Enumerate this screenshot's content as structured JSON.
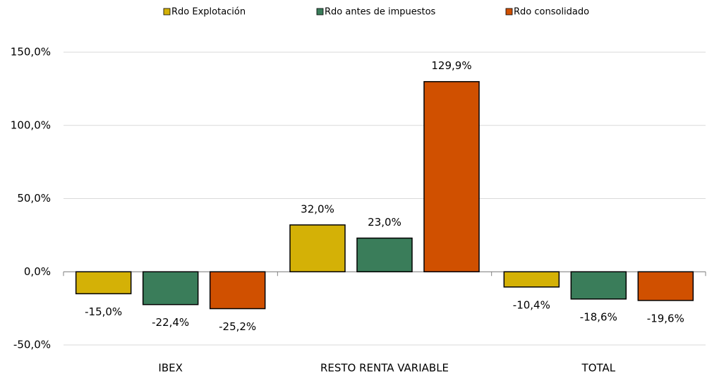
{
  "chart_data": {
    "type": "bar",
    "categories": [
      "IBEX",
      "RESTO RENTA VARIABLE",
      "TOTAL"
    ],
    "series": [
      {
        "name": "Rdo Explotación",
        "color": "#d4b106",
        "values": [
          -15.0,
          32.0,
          -10.4
        ],
        "value_labels": [
          "-15,0%",
          "32,0%",
          "-10,4%"
        ]
      },
      {
        "name": "Rdo antes de impuestos",
        "color": "#3a7d5a",
        "values": [
          -22.4,
          23.0,
          -18.6
        ],
        "value_labels": [
          "-22,4%",
          "23,0%",
          "-18,6%"
        ]
      },
      {
        "name": "Rdo consolidado",
        "color": "#d05000",
        "values": [
          -25.2,
          129.9,
          -19.6
        ],
        "value_labels": [
          "-25,2%",
          "129,9%",
          "-19,6%"
        ]
      }
    ],
    "ylim": [
      -50,
      150
    ],
    "yticks": [
      {
        "value": -50,
        "label": "-50,0%"
      },
      {
        "value": 0,
        "label": "0,0%"
      },
      {
        "value": 50,
        "label": "50,0%"
      },
      {
        "value": 100,
        "label": "100,0%"
      },
      {
        "value": 150,
        "label": "150,0%"
      }
    ],
    "grid": true,
    "legend": "top"
  }
}
